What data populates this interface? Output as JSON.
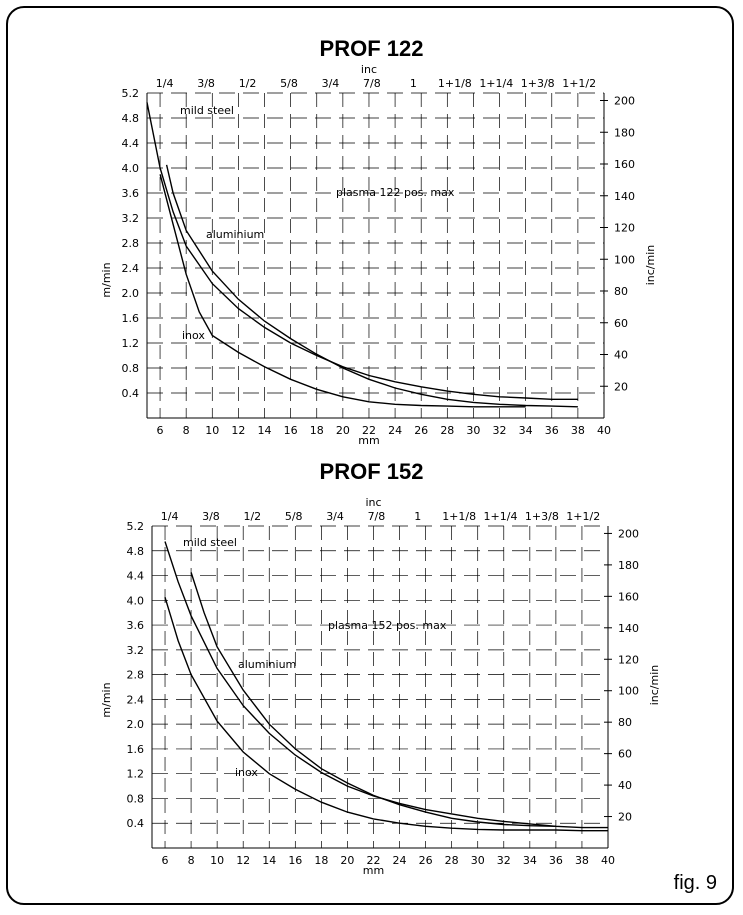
{
  "figure_label": "fig. 9",
  "chart_data": [
    {
      "type": "line",
      "title": "PROF 122",
      "xlabel": "mm",
      "ylabel": "m/min",
      "xlim": [
        5,
        40
      ],
      "ylim": [
        0,
        5.2
      ],
      "x_ticks": [
        6,
        8,
        10,
        12,
        14,
        16,
        18,
        20,
        22,
        24,
        26,
        28,
        30,
        32,
        34,
        36,
        38,
        40
      ],
      "y_ticks": [
        "0.4",
        "0.8",
        "1.2",
        "1.6",
        "2.0",
        "2.4",
        "2.8",
        "3.2",
        "3.6",
        "4.0",
        "4.4",
        "4.8",
        "5.2"
      ],
      "top_axis": {
        "label": "inc",
        "ticks": [
          "1/4",
          "3/8",
          "1/2",
          "5/8",
          "3/4",
          "7/8",
          "1",
          "1+1/8",
          "1+1/4",
          "1+3/8",
          "1+1/2"
        ]
      },
      "right_axis": {
        "label": "inc/min",
        "ticks": [
          "20",
          "40",
          "60",
          "80",
          "100",
          "120",
          "140",
          "160",
          "180",
          "200"
        ]
      },
      "series": [
        {
          "name": "mild steel",
          "points": [
            [
              5,
              5.05
            ],
            [
              6,
              4.0
            ],
            [
              7,
              3.3
            ],
            [
              8,
              2.75
            ],
            [
              10,
              2.15
            ],
            [
              12,
              1.75
            ],
            [
              14,
              1.45
            ],
            [
              16,
              1.2
            ],
            [
              18,
              1.0
            ],
            [
              20,
              0.82
            ],
            [
              22,
              0.68
            ],
            [
              24,
              0.58
            ],
            [
              26,
              0.5
            ],
            [
              28,
              0.43
            ],
            [
              30,
              0.38
            ],
            [
              32,
              0.34
            ],
            [
              34,
              0.32
            ],
            [
              36,
              0.3
            ],
            [
              38,
              0.3
            ]
          ]
        },
        {
          "name": "aluminium",
          "points": [
            [
              6.5,
              4.05
            ],
            [
              7,
              3.6
            ],
            [
              8,
              3.0
            ],
            [
              10,
              2.35
            ],
            [
              12,
              1.9
            ],
            [
              14,
              1.55
            ],
            [
              16,
              1.27
            ],
            [
              18,
              1.02
            ],
            [
              20,
              0.8
            ],
            [
              22,
              0.62
            ],
            [
              24,
              0.48
            ],
            [
              26,
              0.38
            ],
            [
              28,
              0.3
            ],
            [
              30,
              0.25
            ],
            [
              32,
              0.22
            ],
            [
              34,
              0.2
            ],
            [
              36,
              0.19
            ],
            [
              38,
              0.18
            ]
          ]
        },
        {
          "name": "inox",
          "points": [
            [
              6,
              3.9
            ],
            [
              7,
              3.1
            ],
            [
              8,
              2.3
            ],
            [
              9,
              1.7
            ],
            [
              10,
              1.32
            ],
            [
              12,
              1.05
            ],
            [
              14,
              0.82
            ],
            [
              16,
              0.62
            ],
            [
              18,
              0.46
            ],
            [
              20,
              0.34
            ],
            [
              22,
              0.26
            ],
            [
              24,
              0.22
            ],
            [
              26,
              0.2
            ],
            [
              28,
              0.19
            ],
            [
              30,
              0.18
            ],
            [
              32,
              0.18
            ],
            [
              34,
              0.18
            ]
          ]
        }
      ],
      "annotations": [
        "mild steel",
        "aluminium",
        "inox",
        "plasma 122 pos. max"
      ]
    },
    {
      "type": "line",
      "title": "PROF 152",
      "xlabel": "mm",
      "ylabel": "m/min",
      "xlim": [
        5,
        40
      ],
      "ylim": [
        0,
        5.2
      ],
      "x_ticks": [
        6,
        8,
        10,
        12,
        14,
        16,
        18,
        20,
        22,
        24,
        26,
        28,
        30,
        32,
        34,
        36,
        38,
        40
      ],
      "y_ticks": [
        "0.4",
        "0.8",
        "1.2",
        "1.6",
        "2.0",
        "2.4",
        "2.8",
        "3.2",
        "3.6",
        "4.0",
        "4.4",
        "4.8",
        "5.2"
      ],
      "top_axis": {
        "label": "inc",
        "ticks": [
          "1/4",
          "3/8",
          "1/2",
          "5/8",
          "3/4",
          "7/8",
          "1",
          "1+1/8",
          "1+1/4",
          "1+3/8",
          "1+1/2"
        ]
      },
      "right_axis": {
        "label": "inc/min",
        "ticks": [
          "20",
          "40",
          "60",
          "80",
          "100",
          "120",
          "140",
          "160",
          "180",
          "200"
        ]
      },
      "series": [
        {
          "name": "mild steel",
          "points": [
            [
              6,
              4.95
            ],
            [
              7,
              4.3
            ],
            [
              8,
              3.75
            ],
            [
              10,
              2.9
            ],
            [
              12,
              2.3
            ],
            [
              14,
              1.85
            ],
            [
              16,
              1.5
            ],
            [
              18,
              1.22
            ],
            [
              20,
              1.0
            ],
            [
              22,
              0.84
            ],
            [
              24,
              0.72
            ],
            [
              26,
              0.62
            ],
            [
              28,
              0.55
            ],
            [
              30,
              0.48
            ],
            [
              32,
              0.43
            ],
            [
              34,
              0.39
            ],
            [
              36,
              0.35
            ],
            [
              38,
              0.33
            ],
            [
              40,
              0.33
            ]
          ]
        },
        {
          "name": "aluminium",
          "points": [
            [
              8,
              4.45
            ],
            [
              9,
              3.8
            ],
            [
              10,
              3.25
            ],
            [
              12,
              2.55
            ],
            [
              14,
              2.0
            ],
            [
              16,
              1.6
            ],
            [
              18,
              1.28
            ],
            [
              20,
              1.05
            ],
            [
              22,
              0.85
            ],
            [
              24,
              0.7
            ],
            [
              26,
              0.58
            ],
            [
              28,
              0.48
            ],
            [
              30,
              0.42
            ],
            [
              32,
              0.38
            ],
            [
              34,
              0.36
            ],
            [
              36,
              0.35
            ]
          ]
        },
        {
          "name": "inox",
          "points": [
            [
              6,
              4.05
            ],
            [
              7,
              3.35
            ],
            [
              8,
              2.8
            ],
            [
              10,
              2.05
            ],
            [
              12,
              1.55
            ],
            [
              14,
              1.2
            ],
            [
              16,
              0.95
            ],
            [
              18,
              0.74
            ],
            [
              20,
              0.58
            ],
            [
              22,
              0.47
            ],
            [
              24,
              0.4
            ],
            [
              26,
              0.35
            ],
            [
              28,
              0.32
            ],
            [
              30,
              0.3
            ],
            [
              32,
              0.29
            ],
            [
              34,
              0.29
            ],
            [
              36,
              0.29
            ],
            [
              38,
              0.28
            ],
            [
              40,
              0.28
            ]
          ]
        }
      ],
      "annotations": [
        "mild steel",
        "aluminium",
        "inox",
        "plasma 152 pos. max"
      ]
    }
  ]
}
